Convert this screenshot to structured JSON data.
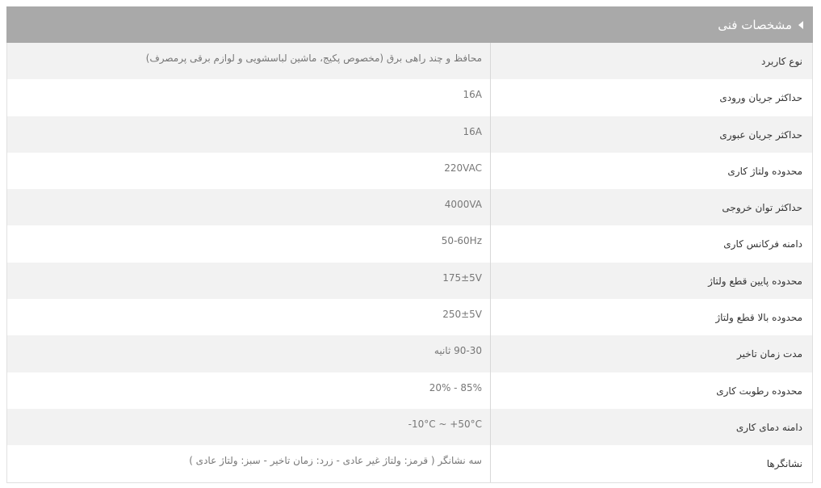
{
  "header": {
    "title": "مشخصات فنی",
    "icon": "caret-left-icon"
  },
  "colors": {
    "header_bg": "#a9a9a9",
    "row_alt": "#f2f2f2"
  },
  "rows": [
    {
      "label": "نوع کاربرد",
      "value": "محافظ و چند راهی برق (مخصوص پکیج، ماشین لباسشویی و لوازم برقی پرمصرف)",
      "dir": "rtl"
    },
    {
      "label": "حداکثر جریان ورودی",
      "value": "16A",
      "dir": "ltr"
    },
    {
      "label": "حداکثر جریان عبوری",
      "value": "16A",
      "dir": "ltr"
    },
    {
      "label": "محدوده ولتاژ کاری",
      "value": "220VAC",
      "dir": "ltr"
    },
    {
      "label": "حداکثر توان خروجی",
      "value": "4000VA",
      "dir": "ltr"
    },
    {
      "label": "دامنه فرکانس کاری",
      "value": "50-60Hz",
      "dir": "ltr"
    },
    {
      "label": "محدوده پایین قطع ولتاژ",
      "value": "175±5V",
      "dir": "ltr"
    },
    {
      "label": "محدوده بالا قطع ولتاژ",
      "value": "250±5V",
      "dir": "ltr"
    },
    {
      "label": "مدت زمان تاخیر",
      "value": "90-30 ثانیه",
      "dir": "rtl"
    },
    {
      "label": "محدوده رطوبت کاری",
      "value": "20% - 85%",
      "dir": "ltr"
    },
    {
      "label": "دامنه دمای کاری",
      "value": "-10°C ~ +50°C",
      "dir": "ltr"
    },
    {
      "label": "نشانگرها",
      "value": "سه نشانگر ( قرمز: ولتاژ غیر عادی - زرد: زمان تاخیر - سبز: ولتاژ عادی )",
      "dir": "rtl"
    }
  ]
}
